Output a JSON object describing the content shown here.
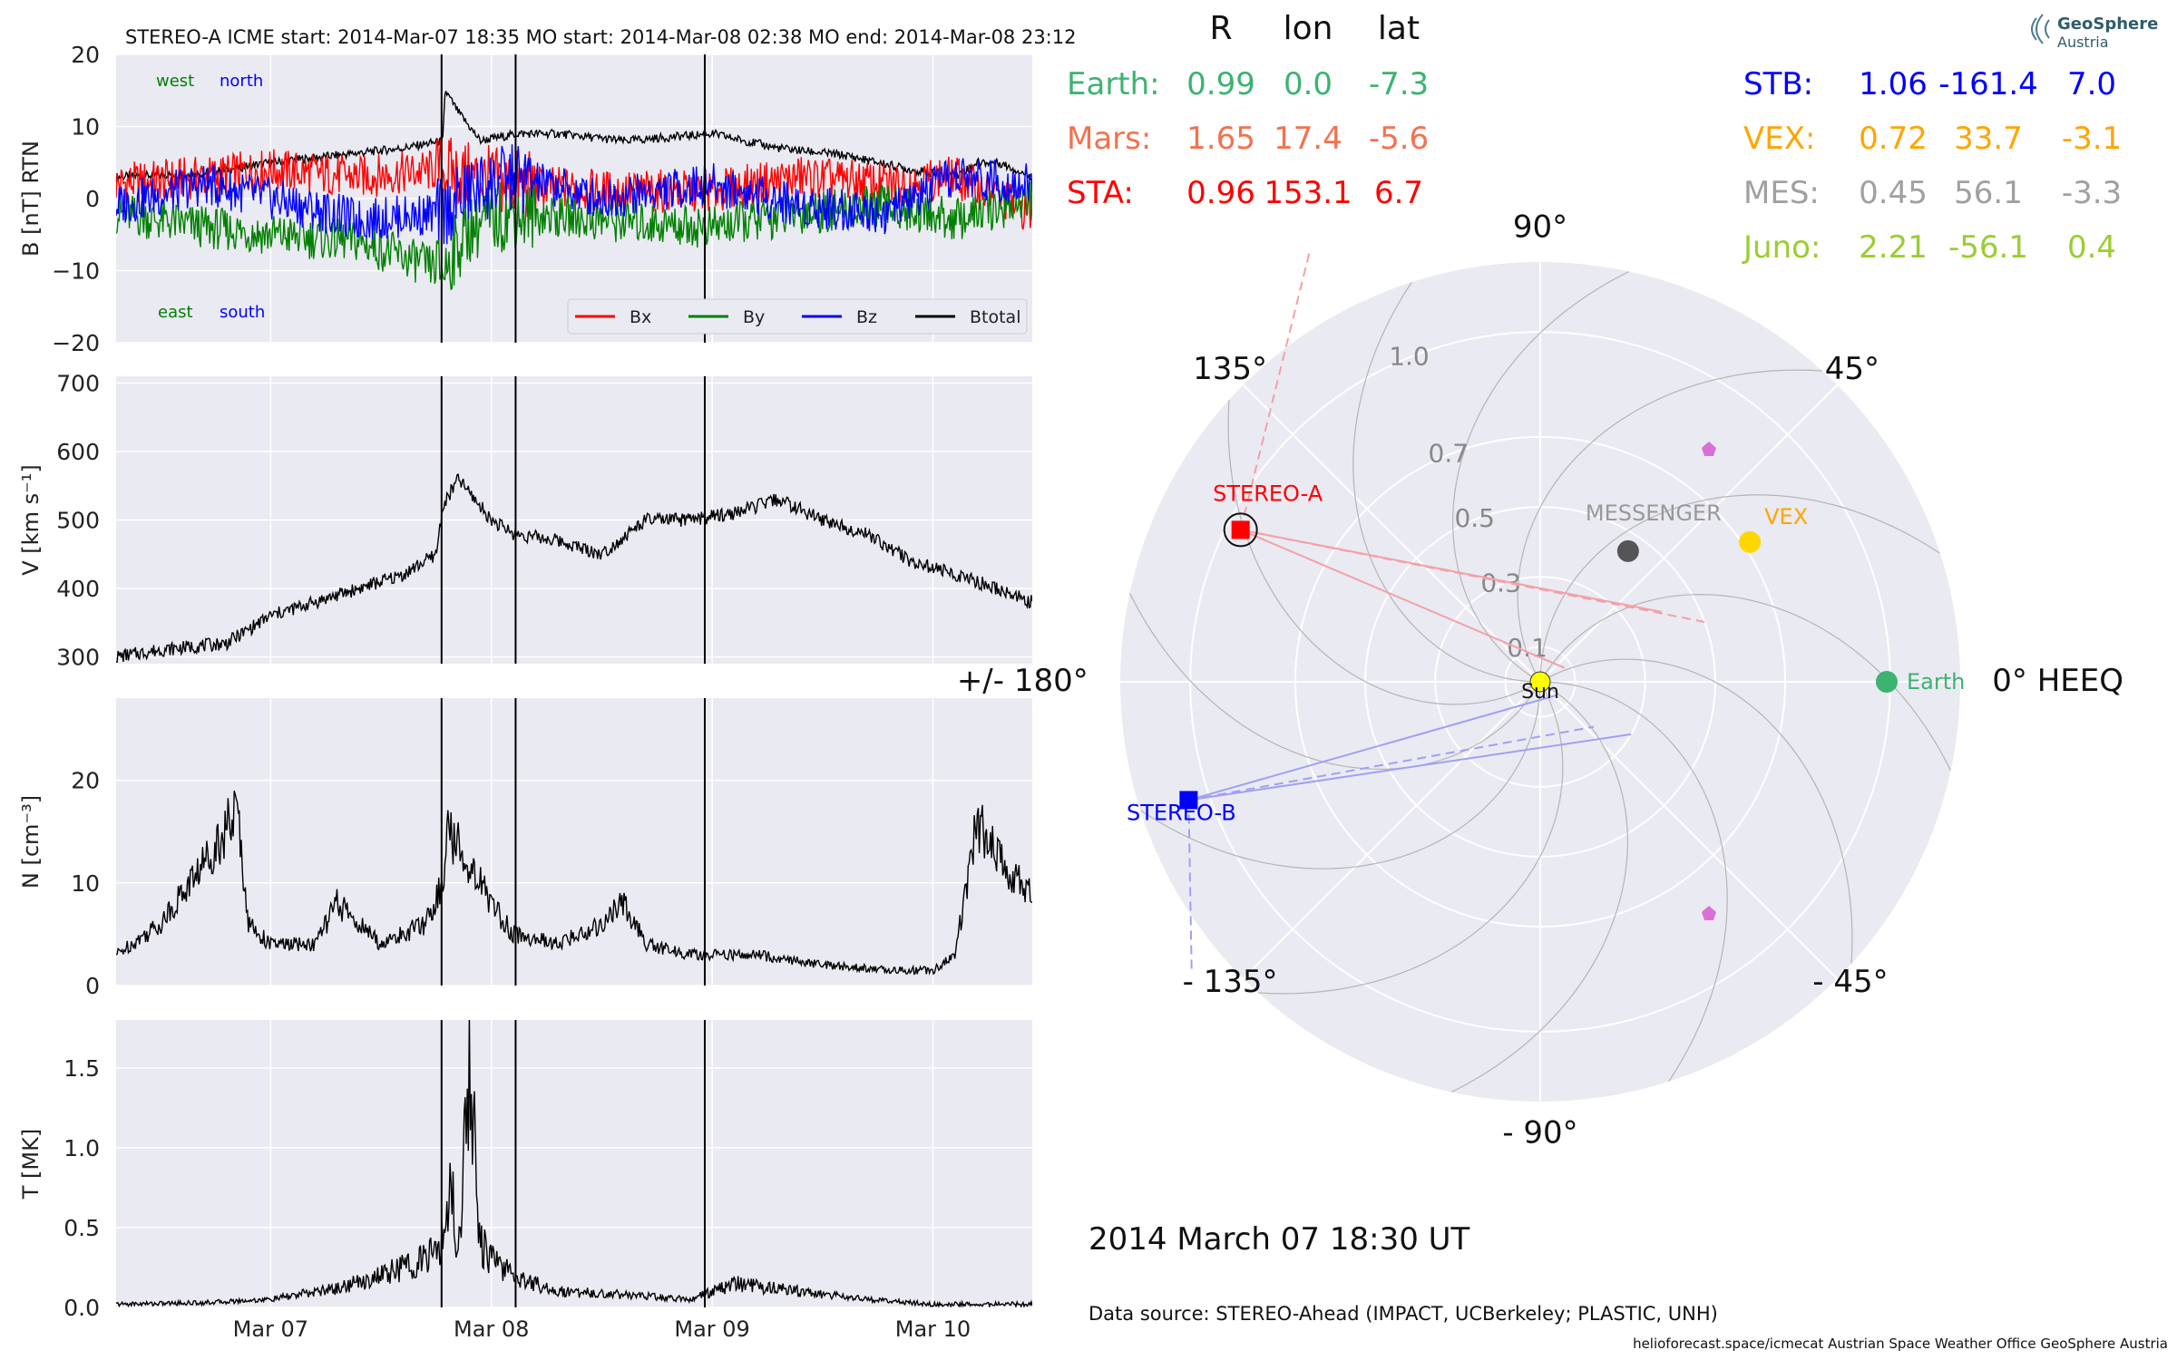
{
  "colors": {
    "bx": "#ff0000",
    "by": "#008000",
    "bz": "#0000ff",
    "bt": "#000000",
    "panel_bg": "#eaeaf2",
    "grid": "#ffffff",
    "event_line": "#000000",
    "earth": "#3cb371",
    "mars": "#f4714e",
    "sta": "#ff0000",
    "stb": "#0000ff",
    "vex": "#ffa500",
    "mes": "#a0a0a0",
    "juno": "#9acd32",
    "sun": "#ffff00",
    "messenger_dot": "#555555",
    "psp_marker": "#da70d6"
  },
  "chart_data": [
    {
      "type": "line",
      "panel": "B",
      "ylabel": "B [nT] RTN",
      "title": "STEREO-A    ICME start: 2014-Mar-07 18:35   MO start: 2014-Mar-08 02:38   MO end: 2014-Mar-08 23:12",
      "x_ticks": [
        "Mar 07",
        "Mar 08",
        "Mar 09",
        "Mar 10"
      ],
      "ylim": [
        -20,
        20
      ],
      "y_ticks": [
        "20",
        "10",
        "0",
        "−10",
        "−20"
      ],
      "y_tick_values": [
        20,
        10,
        0,
        -10,
        -20
      ],
      "corner_labels": {
        "west": "west",
        "north": "north",
        "east": "east",
        "south": "south"
      },
      "legend": [
        "Bx",
        "By",
        "Bz",
        "Btotal"
      ],
      "event_lines": [
        "2014-03-07 18:35",
        "2014-03-08 02:38",
        "2014-03-08 23:12"
      ],
      "x_range_days": [
        -0.7,
        3.45
      ],
      "series": [
        {
          "name": "Btotal",
          "x": [
            -0.7,
            -0.3,
            0.0,
            0.3,
            0.6,
            0.78,
            0.79,
            0.85,
            0.95,
            1.12,
            1.3,
            1.6,
            2.0,
            2.3,
            2.6,
            2.9,
            3.1,
            3.2,
            3.3,
            3.45
          ],
          "values": [
            3,
            3.5,
            5,
            6,
            7,
            8,
            15,
            12,
            8,
            9,
            9,
            8,
            9,
            7,
            6,
            4,
            3,
            5,
            5,
            3
          ]
        },
        {
          "name": "Bx",
          "x": [
            -0.7,
            -0.3,
            0.0,
            0.4,
            0.78,
            0.9,
            1.1,
            1.5,
            2.0,
            2.4,
            2.8,
            3.1,
            3.45
          ],
          "values": [
            2,
            3,
            4,
            3,
            4,
            3,
            2,
            1,
            1,
            3,
            2,
            3,
            -2
          ]
        },
        {
          "name": "By",
          "x": [
            -0.7,
            -0.3,
            0.0,
            0.4,
            0.78,
            0.9,
            1.1,
            1.5,
            2.0,
            2.4,
            2.8,
            3.1,
            3.45
          ],
          "values": [
            -2,
            -4,
            -5,
            -6,
            -10,
            -4,
            -2,
            -3,
            -4,
            -2,
            -1,
            -3,
            0
          ]
        },
        {
          "name": "Bz",
          "x": [
            -0.7,
            -0.3,
            0.0,
            0.4,
            0.78,
            0.9,
            1.1,
            1.5,
            2.0,
            2.4,
            2.8,
            3.1,
            3.45
          ],
          "values": [
            -1,
            2,
            0,
            -3,
            -2,
            1,
            3,
            0,
            2,
            -1,
            -2,
            3,
            2
          ]
        }
      ]
    },
    {
      "type": "line",
      "panel": "V",
      "ylabel": "V [km s⁻¹]",
      "ylim": [
        290,
        710
      ],
      "y_ticks": [
        "700",
        "600",
        "500",
        "400",
        "300"
      ],
      "y_tick_values": [
        700,
        600,
        500,
        400,
        300
      ],
      "series": [
        {
          "name": "",
          "x": [
            -0.7,
            -0.5,
            -0.2,
            0.0,
            0.2,
            0.4,
            0.6,
            0.75,
            0.78,
            0.85,
            1.0,
            1.1,
            1.3,
            1.5,
            1.7,
            1.9,
            2.1,
            2.3,
            2.5,
            2.7,
            2.9,
            3.0,
            3.2,
            3.45
          ],
          "values": [
            300,
            310,
            320,
            360,
            380,
            400,
            420,
            450,
            520,
            560,
            500,
            480,
            470,
            450,
            500,
            500,
            510,
            530,
            500,
            480,
            440,
            430,
            410,
            380
          ]
        }
      ]
    },
    {
      "type": "line",
      "panel": "N",
      "ylabel": "N [cm⁻³]",
      "ylim": [
        0,
        28
      ],
      "y_ticks": [
        "20",
        "10",
        "0"
      ],
      "y_tick_values": [
        20,
        10,
        0
      ],
      "series": [
        {
          "name": "",
          "x": [
            -0.7,
            -0.5,
            -0.3,
            -0.15,
            -0.1,
            0.0,
            0.2,
            0.3,
            0.5,
            0.7,
            0.78,
            0.8,
            0.9,
            1.0,
            1.1,
            1.3,
            1.5,
            1.6,
            1.7,
            1.9,
            2.2,
            2.5,
            2.8,
            3.0,
            3.1,
            3.2,
            3.3,
            3.45
          ],
          "values": [
            3,
            6,
            12,
            17,
            6,
            4,
            4,
            8,
            4,
            6,
            10,
            15,
            12,
            8,
            5,
            4,
            6,
            8,
            4,
            3,
            3,
            2,
            1.5,
            1.5,
            3,
            16,
            12,
            9
          ]
        }
      ]
    },
    {
      "type": "line",
      "panel": "T",
      "ylabel": "T [MK]",
      "xlabel": "",
      "ylim": [
        0,
        1.8
      ],
      "y_ticks": [
        "1.5",
        "1.0",
        "0.5",
        "0.0"
      ],
      "y_tick_values": [
        1.5,
        1.0,
        0.5,
        0.0
      ],
      "series": [
        {
          "name": "",
          "x": [
            -0.7,
            -0.3,
            0.0,
            0.3,
            0.5,
            0.7,
            0.78,
            0.82,
            0.85,
            0.9,
            0.95,
            1.0,
            1.1,
            1.3,
            1.6,
            1.9,
            2.1,
            2.4,
            2.7,
            3.0,
            3.45
          ],
          "values": [
            0.02,
            0.03,
            0.05,
            0.12,
            0.2,
            0.3,
            0.4,
            0.8,
            0.3,
            1.6,
            0.4,
            0.3,
            0.2,
            0.1,
            0.08,
            0.05,
            0.15,
            0.1,
            0.05,
            0.02,
            0.02
          ]
        }
      ]
    },
    {
      "type": "scatter",
      "panel": "polar",
      "angle_labels": [
        "90°",
        "45°",
        "0° HEEQ",
        "- 45°",
        "- 90°",
        "- 135°",
        "+/- 180°",
        "135°"
      ],
      "angle_values": [
        90,
        45,
        0,
        -45,
        -90,
        -135,
        180,
        135
      ],
      "radius_labels": [
        "0.1",
        "0.3",
        "0.5",
        "0.7",
        "1.0"
      ],
      "radius_values": [
        0.1,
        0.3,
        0.5,
        0.7,
        1.0
      ],
      "rlim": [
        0,
        1.2
      ],
      "objects": [
        {
          "name": "Sun",
          "r": 0.0,
          "lon": 0.0,
          "label": "Sun"
        },
        {
          "name": "Earth",
          "r": 0.99,
          "lon": 0.0,
          "label": "Earth"
        },
        {
          "name": "STEREO-A",
          "r": 0.96,
          "lon": 153.1,
          "label": "STEREO-A"
        },
        {
          "name": "STEREO-B",
          "r": 1.06,
          "lon": -161.4,
          "label": "STEREO-B"
        },
        {
          "name": "VEX",
          "r": 0.72,
          "lon": 33.7,
          "label": "VEX"
        },
        {
          "name": "MESSENGER",
          "r": 0.45,
          "lon": 56.1,
          "label": "MESSENGER"
        }
      ],
      "date": "2014 March 07  18:30 UT"
    }
  ],
  "table": {
    "headers": [
      "R",
      "lon",
      "lat"
    ],
    "left": [
      {
        "name": "Earth:",
        "R": "0.99",
        "lon": "0.0",
        "lat": "-7.3",
        "color": "#3cb371"
      },
      {
        "name": "Mars:",
        "R": "1.65",
        "lon": "17.4",
        "lat": "-5.6",
        "color": "#f4714e"
      },
      {
        "name": "STA:",
        "R": "0.96",
        "lon": "153.1",
        "lat": "6.7",
        "color": "#ff0000"
      }
    ],
    "right": [
      {
        "name": "STB:",
        "R": "1.06",
        "lon": "-161.4",
        "lat": "7.0",
        "color": "#0000ff"
      },
      {
        "name": "VEX:",
        "R": "0.72",
        "lon": "33.7",
        "lat": "-3.1",
        "color": "#ffa500"
      },
      {
        "name": "MES:",
        "R": "0.45",
        "lon": "56.1",
        "lat": "-3.3",
        "color": "#a0a0a0"
      },
      {
        "name": "Juno:",
        "R": "2.21",
        "lon": "-56.1",
        "lat": "0.4",
        "color": "#9acd32"
      }
    ]
  },
  "logo": {
    "line1": "GeoSphere",
    "line2": "Austria"
  },
  "footer": {
    "data_source": "Data source: STEREO-Ahead (IMPACT, UCBerkeley; PLASTIC, UNH)",
    "credits": "helioforecast.space/icmecat   Austrian Space Weather Office   GeoSphere Austria"
  }
}
